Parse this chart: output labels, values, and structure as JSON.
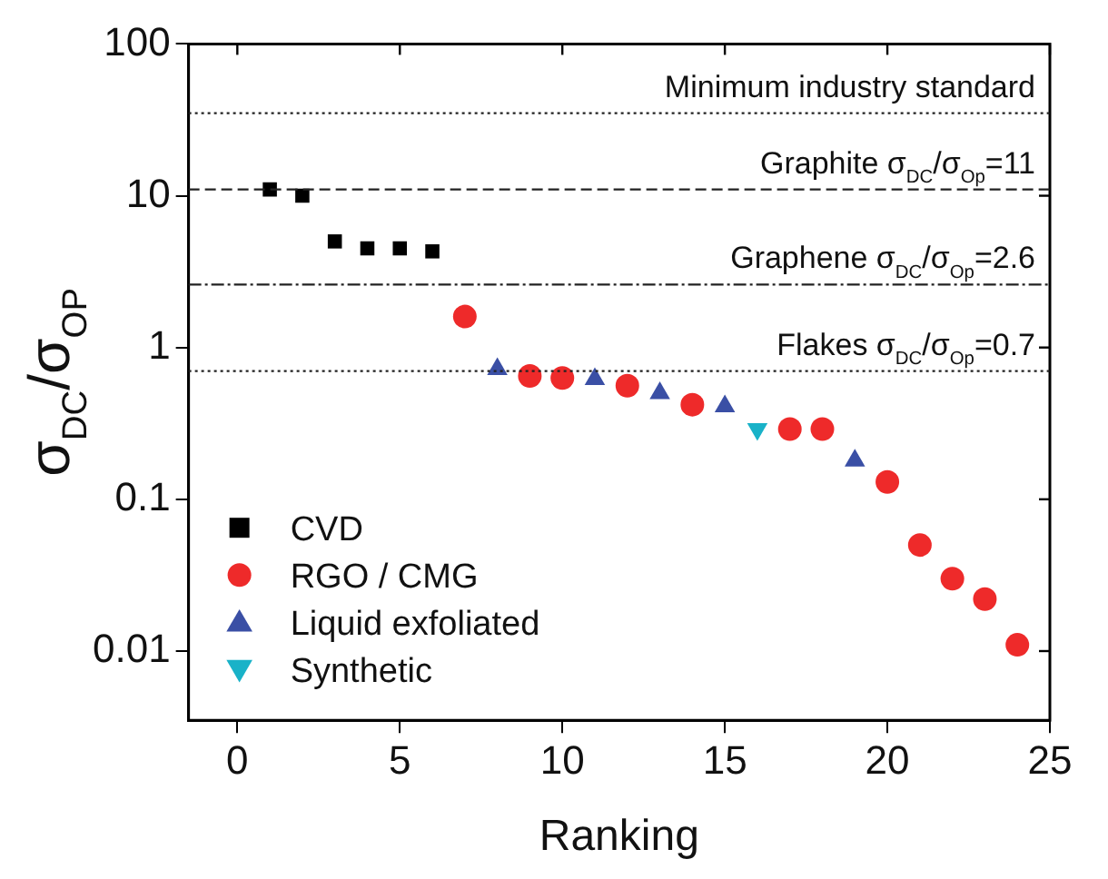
{
  "chart_data": {
    "type": "scatter",
    "xlabel": "Ranking",
    "ylabel": "σ$_{DC}$/σ$_{OP}$",
    "log": "y",
    "grid": false,
    "legend": "bottom left",
    "xlim": [
      -1.5,
      25
    ],
    "xticks": [
      0,
      5,
      10,
      15,
      20,
      25
    ],
    "ylim": [
      0.0035,
      100
    ],
    "yticks": [
      0.01,
      0.1,
      1,
      10,
      100
    ],
    "series": [
      {
        "name": "CVD",
        "color": "#000000",
        "marker": "square",
        "x": [
          1,
          2,
          3,
          4,
          5,
          6
        ],
        "values": [
          11,
          10,
          5,
          4.5,
          4.5,
          4.3
        ]
      },
      {
        "name": "RGO / CMG",
        "color": "#ee2a2a",
        "marker": "circle",
        "x": [
          7,
          9,
          10,
          12,
          14,
          17,
          18,
          20,
          21,
          22,
          23,
          24
        ],
        "values": [
          1.6,
          0.65,
          0.63,
          0.56,
          0.42,
          0.29,
          0.29,
          0.13,
          0.05,
          0.03,
          0.022,
          0.011
        ]
      },
      {
        "name": "Liquid exfoliated",
        "color": "#3a4fa5",
        "marker": "triangle",
        "x": [
          8,
          11,
          13,
          15,
          19
        ],
        "values": [
          0.72,
          0.62,
          0.5,
          0.41,
          0.18
        ]
      },
      {
        "name": "Synthetic",
        "color": "#19b2c8",
        "marker": "triangle-down",
        "x": [
          16
        ],
        "values": [
          0.29
        ]
      }
    ],
    "ref_lines": [
      {
        "axis": "y",
        "value": 35,
        "label": "Minimum industry standard",
        "line_style": "dotted"
      },
      {
        "axis": "y",
        "value": 11,
        "label": "Graphite σ$_{DC}$/σ$_{Op}$=11",
        "line_style": "dashed"
      },
      {
        "axis": "y",
        "value": 2.6,
        "label": "Graphene σ$_{DC}$/σ$_{Op}$=2.6",
        "line_style": "dashdot"
      },
      {
        "axis": "y",
        "value": 0.7,
        "label": "Flakes σ$_{DC}$/σ$_{Op}$=0.7",
        "line_style": "dotted"
      }
    ]
  }
}
